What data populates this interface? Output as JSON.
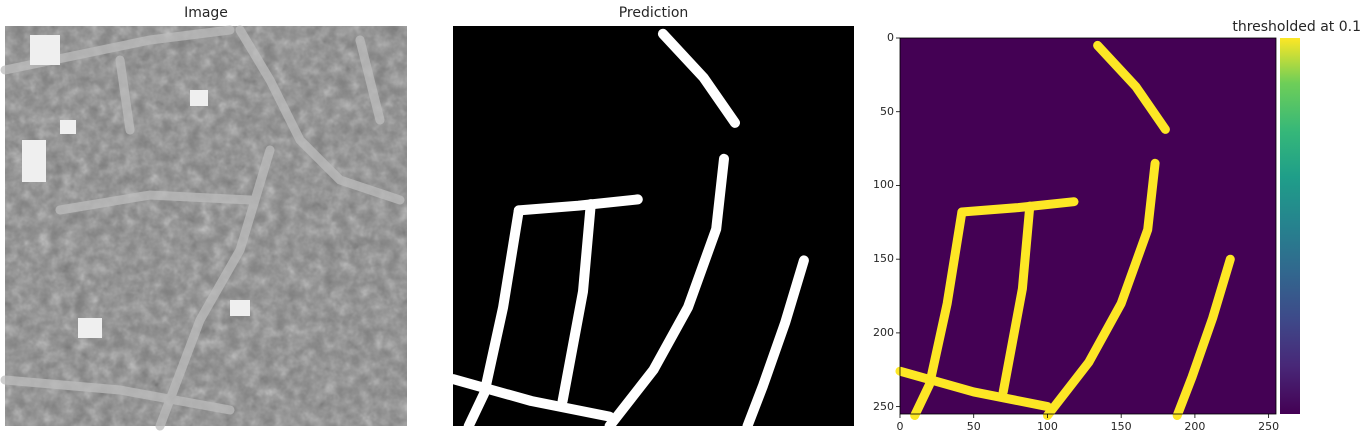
{
  "figure": {
    "panels": [
      {
        "title": "Image",
        "kind": "grayscale-aerial-photo"
      },
      {
        "title": "Prediction",
        "kind": "binary-mask"
      },
      {
        "title": "",
        "kind": "thresholded-heatmap"
      }
    ]
  },
  "chart_data": [
    {
      "type": "heatmap",
      "title": "Image",
      "description_kind": "grayscale aerial image of urban area",
      "axes": false
    },
    {
      "type": "heatmap",
      "title": "Prediction",
      "colormap": "gray",
      "axes": false
    },
    {
      "type": "heatmap",
      "title": "",
      "xlabel": "",
      "ylabel": "",
      "xlim": [
        0,
        255
      ],
      "ylim": [
        255,
        0
      ],
      "x_ticks": [
        0,
        50,
        100,
        150,
        200,
        250
      ],
      "y_ticks": [
        0,
        50,
        100,
        150,
        200,
        250
      ],
      "colormap": "viridis",
      "colorbar_label": "thresholded at 0.1",
      "colors": {
        "background": "#440154",
        "road": "#fde725"
      },
      "road_paths": [
        {
          "name": "top diagonal",
          "points": [
            [
              134,
              5
            ],
            [
              160,
              33
            ],
            [
              180,
              62
            ]
          ]
        },
        {
          "name": "left vertical",
          "points": [
            [
              42,
              118
            ],
            [
              32,
              180
            ],
            [
              20,
              235
            ],
            [
              10,
              256
            ]
          ]
        },
        {
          "name": "top horizontal",
          "points": [
            [
              42,
              118
            ],
            [
              80,
              115
            ],
            [
              118,
              111
            ]
          ]
        },
        {
          "name": "middle vertical",
          "points": [
            [
              88,
              114
            ],
            [
              83,
              170
            ],
            [
              70,
              240
            ]
          ]
        },
        {
          "name": "long diagonal",
          "points": [
            [
              173,
              85
            ],
            [
              168,
              130
            ],
            [
              150,
              180
            ],
            [
              128,
              220
            ],
            [
              100,
              256
            ]
          ]
        },
        {
          "name": "bottom left",
          "points": [
            [
              0,
              226
            ],
            [
              50,
              240
            ],
            [
              100,
              250
            ]
          ]
        },
        {
          "name": "right diagonal",
          "points": [
            [
              224,
              150
            ],
            [
              212,
              190
            ],
            [
              198,
              230
            ],
            [
              188,
              256
            ]
          ]
        }
      ],
      "blobs": [
        {
          "x": 128,
          "y": 220
        }
      ]
    }
  ]
}
